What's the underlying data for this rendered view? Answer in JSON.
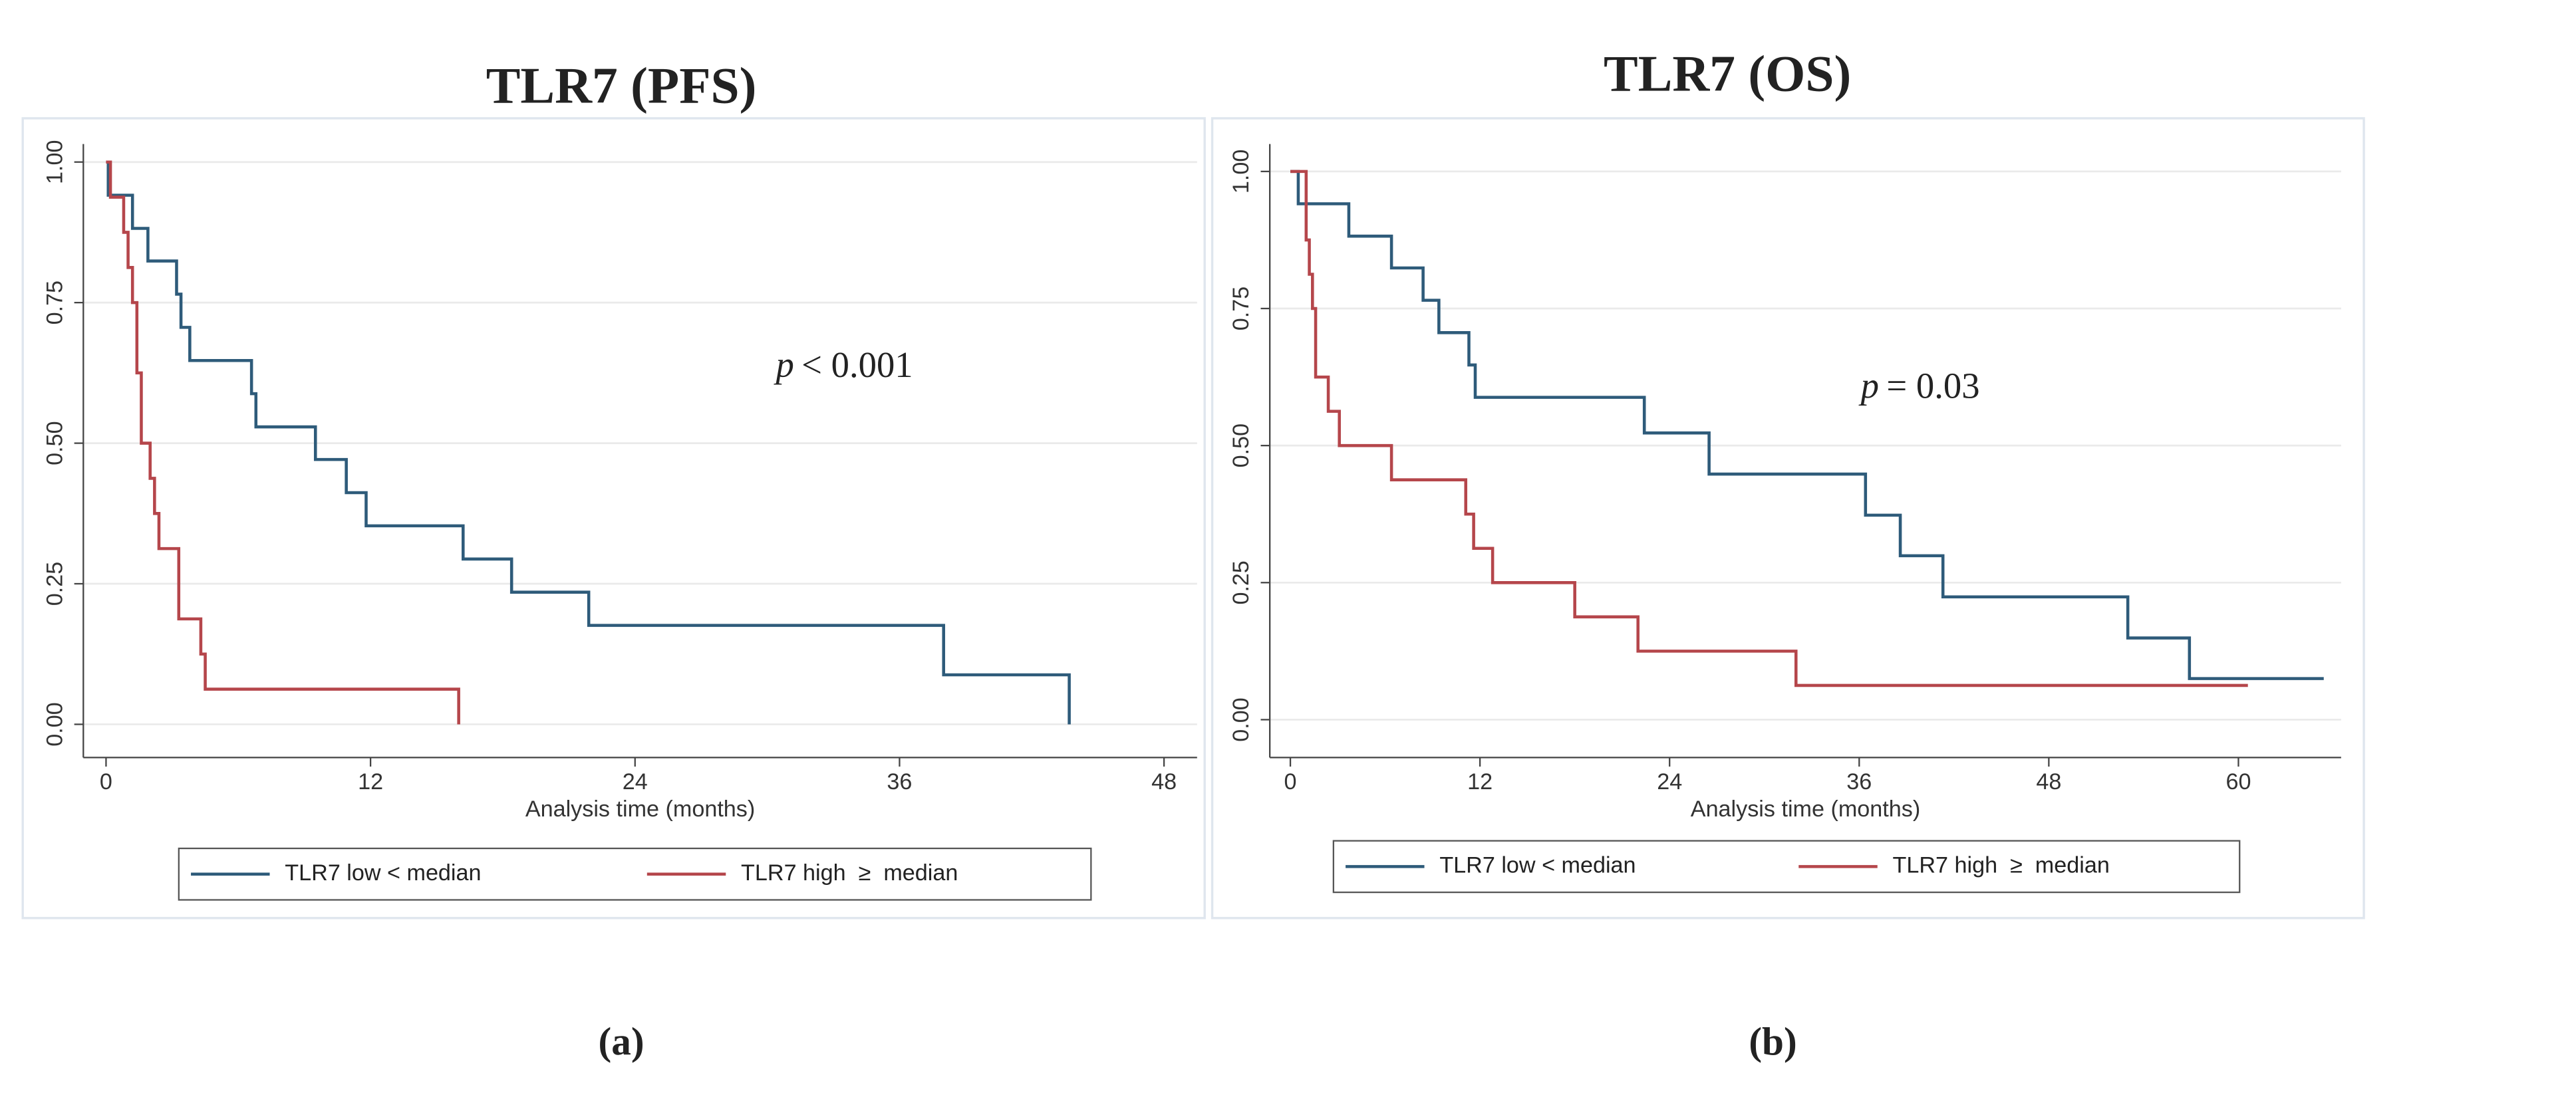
{
  "chart_data": [
    {
      "type": "line",
      "step": "post",
      "title": "TLR7 (PFS)",
      "annotation": [
        "p",
        "< 0.001"
      ],
      "xlabel": "Analysis time (months)",
      "panel_label": "(a)",
      "xlim": [
        -1.03,
        49.5
      ],
      "xticks": [
        0,
        12,
        24,
        36,
        48
      ],
      "ylim": [
        -0.059,
        1.032
      ],
      "yticks": [
        {
          "value": 0,
          "label": "0.00"
        },
        0.25,
        {
          "value": 0.5,
          "label": "0.50"
        },
        0.75,
        {
          "value": 1,
          "label": "1.00"
        }
      ],
      "grid": true,
      "series": [
        {
          "name": "TLR7 low < median",
          "color": "#2e5b7a",
          "x": [
            0,
            0.1,
            1.2,
            1.9,
            3.2,
            3.4,
            3.8,
            6.6,
            6.8,
            9.5,
            10.9,
            11.8,
            16.2,
            18.4,
            21.9,
            38,
            43.7
          ],
          "values": [
            1,
            0.941,
            0.882,
            0.824,
            0.765,
            0.706,
            0.647,
            0.588,
            0.529,
            0.471,
            0.412,
            0.353,
            0.294,
            0.235,
            0.176,
            0.088,
            0
          ]
        },
        {
          "name": "TLR7 high  ≥  median",
          "color": "#b5464b",
          "x": [
            0,
            0.2,
            0.8,
            1.0,
            1.2,
            1.4,
            1.6,
            2.0,
            2.2,
            2.4,
            3.3,
            4.3,
            4.5,
            16
          ],
          "values": [
            1,
            0.9375,
            0.875,
            0.8125,
            0.75,
            0.625,
            0.5,
            0.4375,
            0.375,
            0.3125,
            0.1875,
            0.125,
            0.0625,
            0
          ]
        }
      ]
    },
    {
      "type": "line",
      "step": "post",
      "title": "TLR7 (OS)",
      "annotation": [
        "p",
        "= 0.03"
      ],
      "xlabel": "Analysis time (months)",
      "panel_label": "(b)",
      "xlim": [
        -1.3,
        66.5
      ],
      "xticks": [
        0,
        12,
        24,
        36,
        48,
        60
      ],
      "ylim": [
        -0.069,
        1.05
      ],
      "yticks": [
        {
          "value": 0,
          "label": "0.00"
        },
        0.25,
        {
          "value": 0.5,
          "label": "0.50"
        },
        0.75,
        {
          "value": 1,
          "label": "1.00"
        }
      ],
      "grid": true,
      "series": [
        {
          "name": "TLR7 low < median",
          "color": "#2e5b7a",
          "x": [
            0,
            0.5,
            3.7,
            6.4,
            8.4,
            9.4,
            11.3,
            11.7,
            22.4,
            26.5,
            36.4,
            38.6,
            41.3,
            53,
            56.9,
            65.4
          ],
          "values": [
            1,
            0.941,
            0.882,
            0.824,
            0.765,
            0.706,
            0.647,
            0.588,
            0.523,
            0.448,
            0.373,
            0.299,
            0.224,
            0.149,
            0.075,
            0.075
          ]
        },
        {
          "name": "TLR7 high  ≥  median",
          "color": "#b5464b",
          "x": [
            0,
            1.0,
            1.2,
            1.4,
            1.6,
            2.4,
            3.1,
            6.4,
            11.1,
            11.6,
            12.8,
            18.0,
            22.0,
            32.0,
            60.6
          ],
          "values": [
            1,
            0.875,
            0.8125,
            0.75,
            0.625,
            0.5625,
            0.5,
            0.4375,
            0.375,
            0.3125,
            0.25,
            0.1875,
            0.125,
            0.0625,
            0.0625
          ]
        }
      ]
    }
  ]
}
